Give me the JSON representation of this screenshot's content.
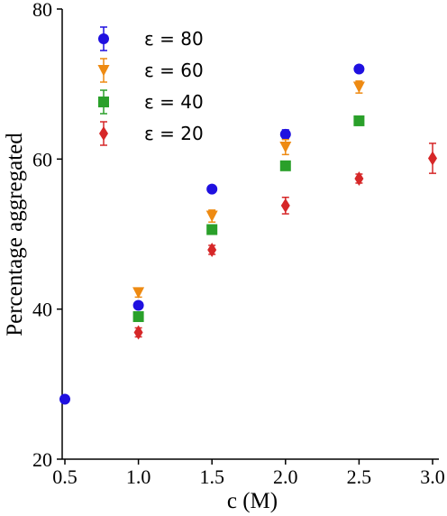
{
  "chart_data": {
    "type": "scatter",
    "xlabel": "c (M)",
    "ylabel": "Percentage aggregated",
    "xlim": [
      0.5,
      3.0
    ],
    "ylim": [
      20,
      80
    ],
    "xticks": [
      "0.5",
      "1.0",
      "1.5",
      "2.0",
      "2.5",
      "3.0"
    ],
    "yticks": [
      "20",
      "40",
      "60",
      "80"
    ],
    "grid": false,
    "legend_position": "top-left",
    "series": [
      {
        "name": "ε = 80",
        "marker": "circle",
        "color": "#1f10e0",
        "points": [
          {
            "x": 0.5,
            "y": 28.0,
            "err": 0.4
          },
          {
            "x": 1.0,
            "y": 40.5,
            "err": 0.4
          },
          {
            "x": 1.5,
            "y": 56.0,
            "err": 0.4
          },
          {
            "x": 2.0,
            "y": 63.3,
            "err": 0.6
          },
          {
            "x": 2.5,
            "y": 72.0,
            "err": 0.4
          }
        ]
      },
      {
        "name": "ε = 60",
        "marker": "triangle-down",
        "color": "#ee8a12",
        "points": [
          {
            "x": 1.0,
            "y": 42.2,
            "err": 0.6
          },
          {
            "x": 1.5,
            "y": 52.4,
            "err": 0.8
          },
          {
            "x": 2.0,
            "y": 61.6,
            "err": 1.0
          },
          {
            "x": 2.5,
            "y": 69.6,
            "err": 0.8
          }
        ]
      },
      {
        "name": "ε = 40",
        "marker": "square",
        "color": "#2aa02a",
        "points": [
          {
            "x": 1.0,
            "y": 39.0,
            "err": 0.4
          },
          {
            "x": 1.5,
            "y": 50.6,
            "err": 0.4
          },
          {
            "x": 2.0,
            "y": 59.1,
            "err": 0.4
          },
          {
            "x": 2.5,
            "y": 65.1,
            "err": 0.6
          }
        ]
      },
      {
        "name": "ε = 20",
        "marker": "diamond",
        "color": "#d62728",
        "points": [
          {
            "x": 1.0,
            "y": 36.9,
            "err": 0.6
          },
          {
            "x": 1.5,
            "y": 47.9,
            "err": 0.6
          },
          {
            "x": 2.0,
            "y": 53.8,
            "err": 1.1
          },
          {
            "x": 2.5,
            "y": 57.4,
            "err": 0.6
          },
          {
            "x": 3.0,
            "y": 60.1,
            "err": 2.0
          }
        ]
      }
    ]
  }
}
